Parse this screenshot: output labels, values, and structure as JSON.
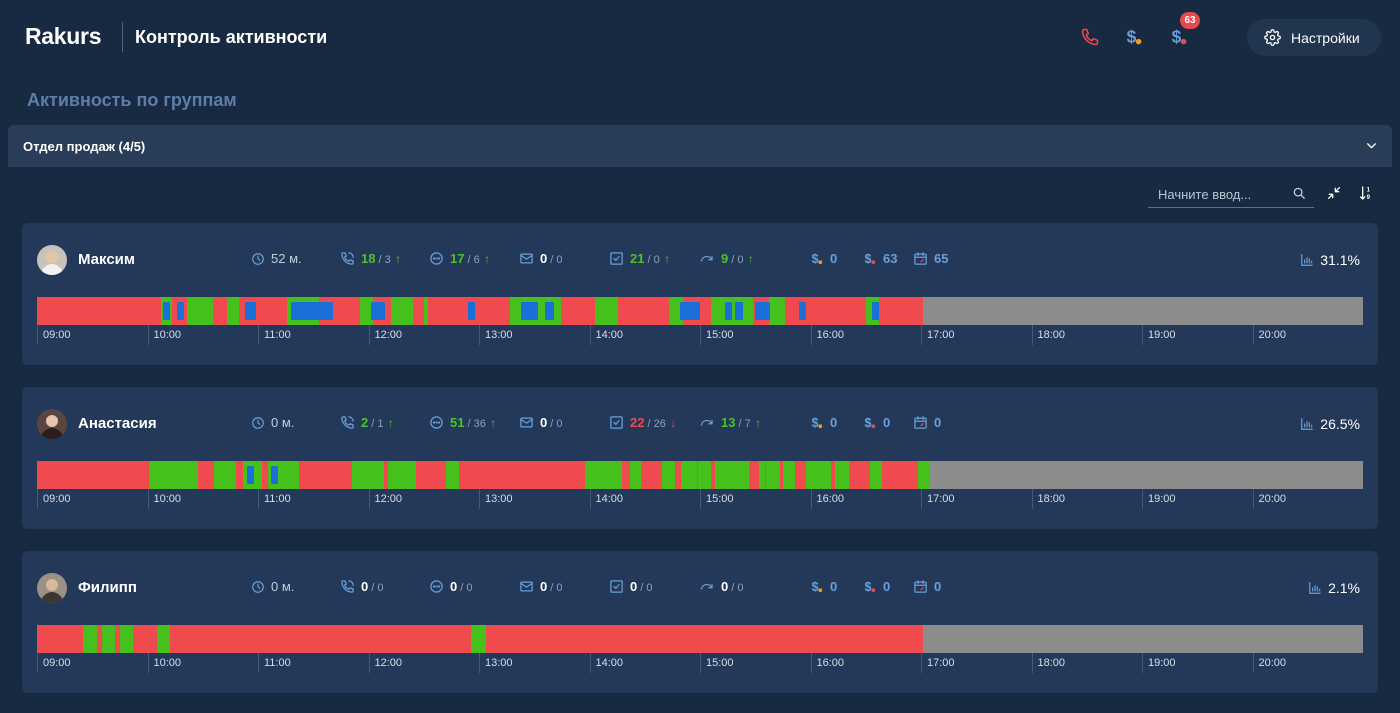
{
  "header": {
    "logo": "Rakurs",
    "title": "Контроль активности",
    "badge_count": "63",
    "settings_label": "Настройки"
  },
  "section_title": "Активность по группам",
  "group": {
    "title": "Отдел продаж (4/5)",
    "search_placeholder": "Начните ввод..."
  },
  "time_labels": [
    "09:00",
    "10:00",
    "11:00",
    "12:00",
    "13:00",
    "14:00",
    "15:00",
    "16:00",
    "17:00",
    "18:00",
    "19:00",
    "20:00"
  ],
  "colors": {
    "red": "#ef4a4e",
    "green": "#46c01c",
    "gray": "#8c8c8c",
    "blue": "#1a6fd8",
    "stat_green": "#4cc22a",
    "stat_red": "#ef4a4e",
    "stat_blue": "#6a9fd8"
  },
  "users": [
    {
      "name": "Максим",
      "time": "52 м.",
      "calls": {
        "main": "18",
        "sub": "3",
        "trend": "up"
      },
      "chats": {
        "main": "17",
        "sub": "6",
        "trend": "up"
      },
      "mail": {
        "main": "0",
        "sub": "0",
        "trend": ""
      },
      "tasks": {
        "main": "21",
        "sub": "0",
        "trend": "up"
      },
      "rounds": {
        "main": "9",
        "sub": "0",
        "trend": "up"
      },
      "deals1": "0",
      "deals2": "63",
      "calendar": "65",
      "percent": "31.1%"
    },
    {
      "name": "Анастасия",
      "time": "0 м.",
      "calls": {
        "main": "2",
        "sub": "1",
        "trend": "up"
      },
      "chats": {
        "main": "51",
        "sub": "36",
        "trend": "up"
      },
      "mail": {
        "main": "0",
        "sub": "0",
        "trend": ""
      },
      "tasks": {
        "main": "22",
        "sub": "26",
        "trend": "down"
      },
      "rounds": {
        "main": "13",
        "sub": "7",
        "trend": "up"
      },
      "deals1": "0",
      "deals2": "0",
      "calendar": "0",
      "percent": "26.5%"
    },
    {
      "name": "Филипп",
      "time": "0 м.",
      "calls": {
        "main": "0",
        "sub": "0",
        "trend": ""
      },
      "chats": {
        "main": "0",
        "sub": "0",
        "trend": ""
      },
      "mail": {
        "main": "0",
        "sub": "0",
        "trend": ""
      },
      "tasks": {
        "main": "0",
        "sub": "0",
        "trend": ""
      },
      "rounds": {
        "main": "0",
        "sub": "0",
        "trend": ""
      },
      "deals1": "0",
      "deals2": "0",
      "calendar": "0",
      "percent": "2.1%"
    }
  ],
  "timelines": [
    {
      "green": [
        [
          10.12,
          10.22
        ],
        [
          10.36,
          10.59
        ],
        [
          10.72,
          10.83
        ],
        [
          11.26,
          11.55
        ],
        [
          11.92,
          12.04
        ],
        [
          12.2,
          12.4
        ],
        [
          12.5,
          12.54
        ],
        [
          13.28,
          13.74
        ],
        [
          14.05,
          14.26
        ],
        [
          14.72,
          14.85
        ],
        [
          15.1,
          15.48
        ],
        [
          15.62,
          15.77
        ],
        [
          16.5,
          16.62
        ]
      ],
      "blue": [
        [
          10.14,
          10.2
        ],
        [
          10.27,
          10.33
        ],
        [
          10.88,
          10.98
        ],
        [
          11.3,
          11.68
        ],
        [
          12.02,
          12.15
        ],
        [
          12.9,
          12.96
        ],
        [
          13.38,
          13.48
        ],
        [
          13.46,
          13.53
        ],
        [
          13.6,
          13.68
        ],
        [
          14.82,
          15.0
        ],
        [
          15.23,
          15.29
        ],
        [
          15.32,
          15.39
        ],
        [
          15.5,
          15.63
        ],
        [
          15.9,
          15.96
        ],
        [
          16.56,
          16.62
        ]
      ],
      "end": 17.02
    },
    {
      "green": [
        [
          10.01,
          10.46
        ],
        [
          10.6,
          10.8
        ],
        [
          10.86,
          11.04
        ],
        [
          11.09,
          11.37
        ],
        [
          11.85,
          12.14
        ],
        [
          12.18,
          12.43
        ],
        [
          12.7,
          12.82
        ],
        [
          13.96,
          14.29
        ],
        [
          14.37,
          14.47
        ],
        [
          14.66,
          14.77
        ],
        [
          14.83,
          14.97
        ],
        [
          14.98,
          15.1
        ],
        [
          15.14,
          15.44
        ],
        [
          15.53,
          15.59
        ],
        [
          15.6,
          15.72
        ],
        [
          15.75,
          15.86
        ],
        [
          15.96,
          16.19
        ],
        [
          16.22,
          16.35
        ],
        [
          16.54,
          16.65
        ],
        [
          16.97,
          17.08
        ]
      ],
      "blue": [
        [
          10.9,
          10.96
        ],
        [
          11.12,
          11.18
        ]
      ],
      "end": 17.08
    },
    {
      "green": [
        [
          9.42,
          9.54
        ],
        [
          9.59,
          9.71
        ],
        [
          9.75,
          9.87
        ],
        [
          10.09,
          10.2
        ],
        [
          12.93,
          13.06
        ]
      ],
      "blue": [],
      "end": 17.02
    }
  ]
}
